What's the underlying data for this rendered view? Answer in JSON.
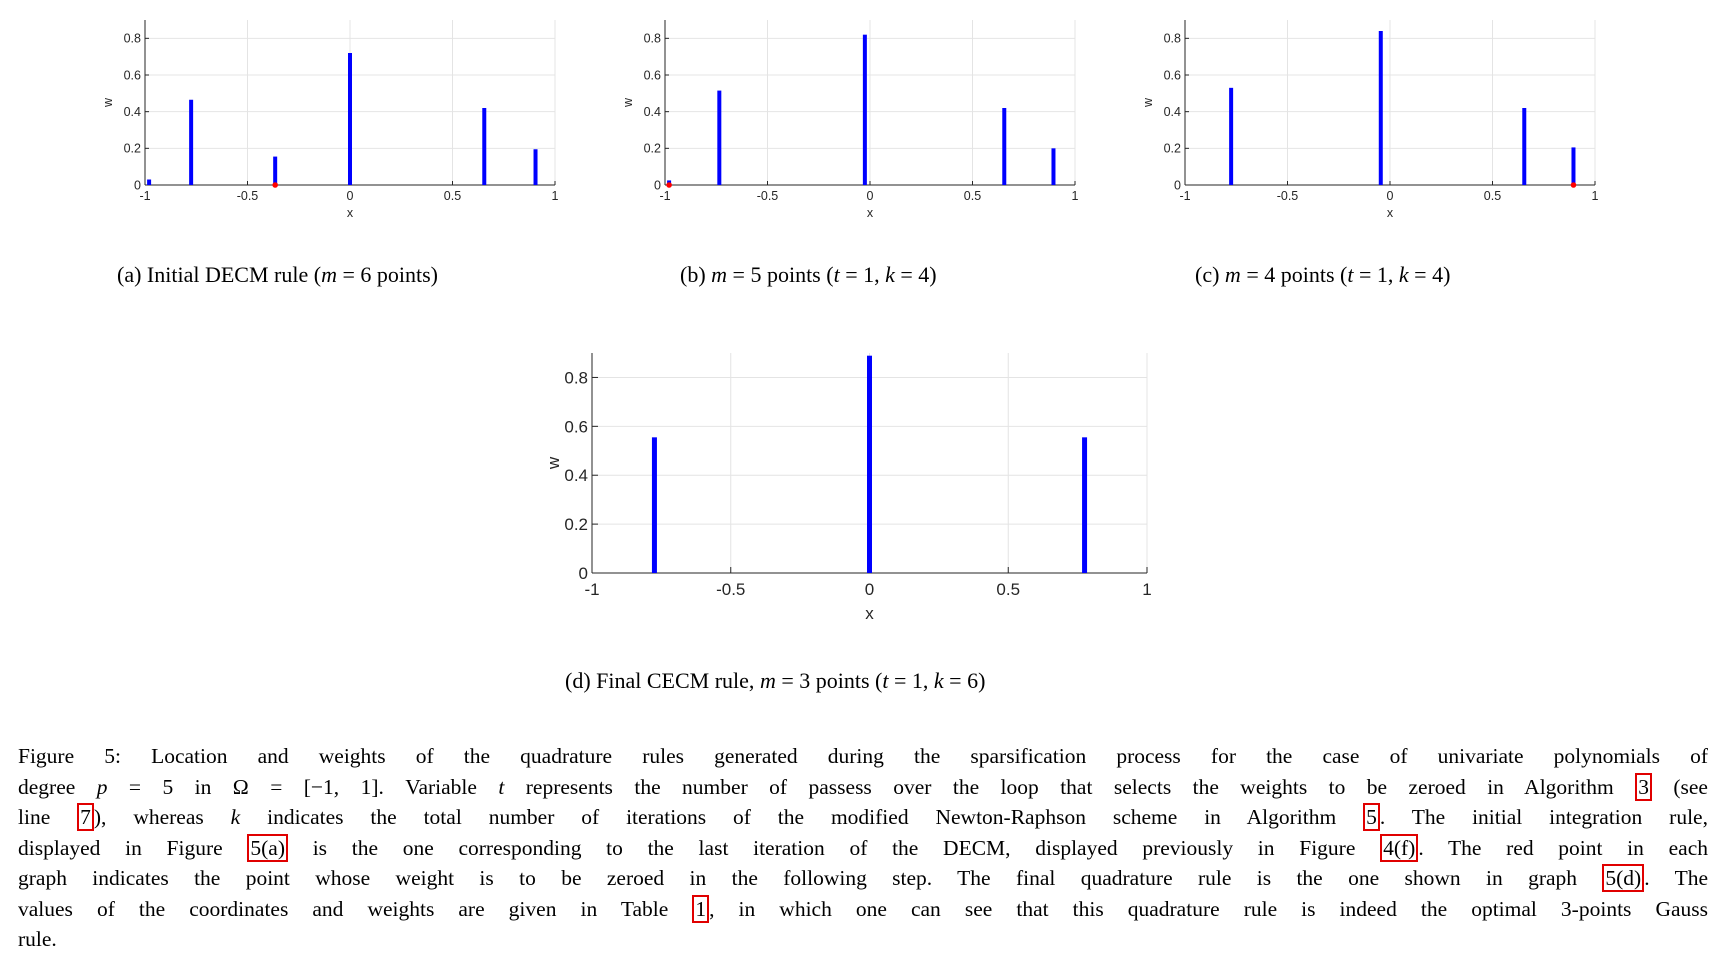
{
  "chart_data": [
    {
      "type": "bar",
      "x": [
        -0.98,
        -0.775,
        -0.365,
        0.0,
        0.655,
        0.905
      ],
      "values": [
        0.03,
        0.465,
        0.155,
        0.72,
        0.42,
        0.195
      ],
      "red_point_x": -0.365,
      "xlabel": "x",
      "ylabel": "w",
      "xlim": [
        -1,
        1
      ],
      "ylim": [
        0,
        0.9
      ],
      "xticks": [
        "-1",
        "-0.5",
        "0",
        "0.5",
        "1"
      ],
      "yticks": [
        "0",
        "0.2",
        "0.4",
        "0.6",
        "0.8"
      ],
      "grid": true,
      "bar_color": "#0000ff",
      "point_color": "#ff0000"
    },
    {
      "type": "bar",
      "x": [
        -0.98,
        -0.735,
        -0.025,
        0.655,
        0.895
      ],
      "values": [
        0.025,
        0.515,
        0.82,
        0.42,
        0.2
      ],
      "red_point_x": -0.98,
      "xlabel": "x",
      "ylabel": "w",
      "xlim": [
        -1,
        1
      ],
      "ylim": [
        0,
        0.9
      ],
      "xticks": [
        "-1",
        "-0.5",
        "0",
        "0.5",
        "1"
      ],
      "yticks": [
        "0",
        "0.2",
        "0.4",
        "0.6",
        "0.8"
      ],
      "grid": true,
      "bar_color": "#0000ff",
      "point_color": "#ff0000"
    },
    {
      "type": "bar",
      "x": [
        -0.775,
        -0.045,
        0.655,
        0.895
      ],
      "values": [
        0.53,
        0.84,
        0.42,
        0.205
      ],
      "red_point_x": 0.895,
      "xlabel": "x",
      "ylabel": "w",
      "xlim": [
        -1,
        1
      ],
      "ylim": [
        0,
        0.9
      ],
      "xticks": [
        "-1",
        "-0.5",
        "0",
        "0.5",
        "1"
      ],
      "yticks": [
        "0",
        "0.2",
        "0.4",
        "0.6",
        "0.8"
      ],
      "grid": true,
      "bar_color": "#0000ff",
      "point_color": "#ff0000"
    },
    {
      "type": "bar",
      "x": [
        -0.775,
        0.0,
        0.775
      ],
      "values": [
        0.555,
        0.889,
        0.555
      ],
      "red_point_x": null,
      "xlabel": "x",
      "ylabel": "w",
      "xlim": [
        -1,
        1
      ],
      "ylim": [
        0,
        0.9
      ],
      "xticks": [
        "-1",
        "-0.5",
        "0",
        "0.5",
        "1"
      ],
      "yticks": [
        "0",
        "0.2",
        "0.4",
        "0.6",
        "0.8"
      ],
      "grid": true,
      "bar_color": "#0000ff",
      "point_color": "#ff0000"
    }
  ],
  "captions": {
    "a": {
      "label": "(a) Initial DECM rule (",
      "m": "m",
      "rest": " = 6 points)"
    },
    "b": {
      "label": "(b) ",
      "m": "m",
      "mid": " = 5 points (",
      "t": "t",
      "mid2": " = 1, ",
      "k": "k",
      "end": " = 4)"
    },
    "c": {
      "label": "(c) ",
      "m": "m",
      "mid": " = 4 points (",
      "t": "t",
      "mid2": " = 1, ",
      "k": "k",
      "end": " = 4)"
    },
    "d": {
      "label": "(d) Final CECM rule, ",
      "m": "m",
      "mid": " = 3 points (",
      "t": "t",
      "mid2": " = 1, ",
      "k": "k",
      "end": " = 6)"
    }
  },
  "figure_caption": {
    "l1": "Figure 5:   Location and weights of the quadrature rules generated during the sparsification process for the case of univariate polynomials of",
    "l2a": "degree ",
    "l2p": "p",
    "l2b": " = 5 in Ω = [−1, 1]. Variable ",
    "l2t": "t",
    "l2c": " represents the number of passess over the loop that selects the weights to be zeroed in Algorithm ",
    "l2ref": "3",
    "l2d": " (see",
    "l3a": "line ",
    "l3ref": "7",
    "l3b": "), whereas ",
    "l3k": "k",
    "l3c": " indicates the total number of iterations of the modified Newton-Raphson scheme in Algorithm ",
    "l3ref2": "5",
    "l3d": ". The initial integration rule,",
    "l4a": "displayed in Figure ",
    "l4ref": "5(a)",
    "l4b": " is the one corresponding to the last iteration of the DECM, displayed previously in Figure ",
    "l4ref2": "4(f)",
    "l4c": ". The red point in each",
    "l5a": "graph indicates the point whose weight is to be zeroed in the following step. The final quadrature rule is the one shown in graph ",
    "l5ref": "5(d)",
    "l5b": ". The",
    "l6a": "values of the coordinates and weights are given in Table ",
    "l6ref": "1",
    "l6b": ", in which one can see that this quadrature rule is indeed the optimal 3-points Gauss",
    "l7": "rule."
  }
}
